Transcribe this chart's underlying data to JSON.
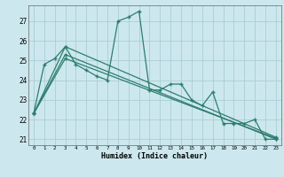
{
  "xlabel": "Humidex (Indice chaleur)",
  "xlim": [
    -0.5,
    23.5
  ],
  "ylim": [
    20.7,
    27.8
  ],
  "yticks": [
    21,
    22,
    23,
    24,
    25,
    26,
    27
  ],
  "xticks": [
    0,
    1,
    2,
    3,
    4,
    5,
    6,
    7,
    8,
    9,
    10,
    11,
    12,
    13,
    14,
    15,
    16,
    17,
    18,
    19,
    20,
    21,
    22,
    23
  ],
  "bg_color": "#cce8ee",
  "line_color": "#2e7d6e",
  "grid_color": "#aacdd4",
  "series_main_x": [
    0,
    1,
    2,
    3,
    4,
    5,
    6,
    7,
    8,
    9,
    10,
    11,
    12,
    13,
    14,
    15,
    16,
    17,
    18,
    19,
    20,
    21,
    22,
    23
  ],
  "series_main_y": [
    22.3,
    24.8,
    25.1,
    25.7,
    24.8,
    24.5,
    24.2,
    24.0,
    27.0,
    27.2,
    27.5,
    23.5,
    23.5,
    23.8,
    23.8,
    23.0,
    22.7,
    23.4,
    21.8,
    21.8,
    21.8,
    22.0,
    21.0,
    21.0
  ],
  "series_trend1_x": [
    0,
    3,
    23
  ],
  "series_trend1_y": [
    22.3,
    25.1,
    21.05
  ],
  "series_trend2_x": [
    0,
    3,
    23
  ],
  "series_trend2_y": [
    22.3,
    25.7,
    21.1
  ],
  "series_trend3_x": [
    0,
    3,
    23
  ],
  "series_trend3_y": [
    22.3,
    25.3,
    21.0
  ]
}
